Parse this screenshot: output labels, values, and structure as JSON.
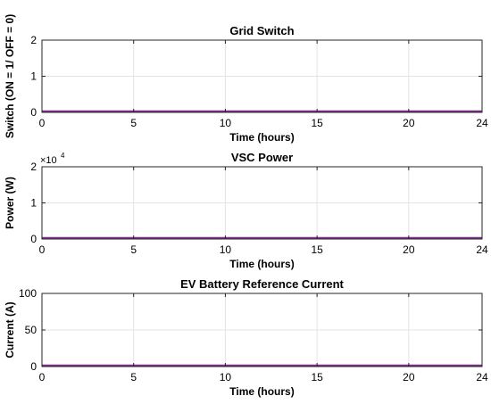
{
  "chart_data": [
    {
      "type": "line",
      "title": "Grid Switch",
      "xlabel": "Time (hours)",
      "ylabel": "Switch (ON = 1/ OFF = 0)",
      "xlim": [
        0,
        24
      ],
      "ylim": [
        0,
        2
      ],
      "xticks": [
        "0",
        "5",
        "10",
        "15",
        "20",
        "24"
      ],
      "yticks": [
        "0",
        "1",
        "2"
      ],
      "grid": true,
      "series": [
        {
          "color": "#7e2f8e",
          "x": [
            0,
            24
          ],
          "y": [
            0,
            0
          ]
        }
      ]
    },
    {
      "type": "line",
      "title": "VSC Power",
      "xlabel": "Time (hours)",
      "ylabel": "Power (W)",
      "xlim": [
        0,
        24
      ],
      "ylim": [
        0,
        20000
      ],
      "scale_label": "×10",
      "scale_exponent": "4",
      "xticks": [
        "0",
        "5",
        "10",
        "15",
        "20",
        "24"
      ],
      "yticks": [
        "0",
        "1",
        "2"
      ],
      "grid": true,
      "series": [
        {
          "color": "#7e2f8e",
          "x": [
            0,
            24
          ],
          "y": [
            0,
            0
          ]
        }
      ]
    },
    {
      "type": "line",
      "title": "EV Battery Reference Current",
      "xlabel": "Time (hours)",
      "ylabel": "Current (A)",
      "xlim": [
        0,
        24
      ],
      "ylim": [
        0,
        100
      ],
      "xticks": [
        "0",
        "5",
        "10",
        "15",
        "20",
        "24"
      ],
      "yticks": [
        "0",
        "50",
        "100"
      ],
      "grid": true,
      "series": [
        {
          "color": "#7e2f8e",
          "x": [
            0,
            24
          ],
          "y": [
            0,
            0
          ]
        }
      ]
    }
  ]
}
